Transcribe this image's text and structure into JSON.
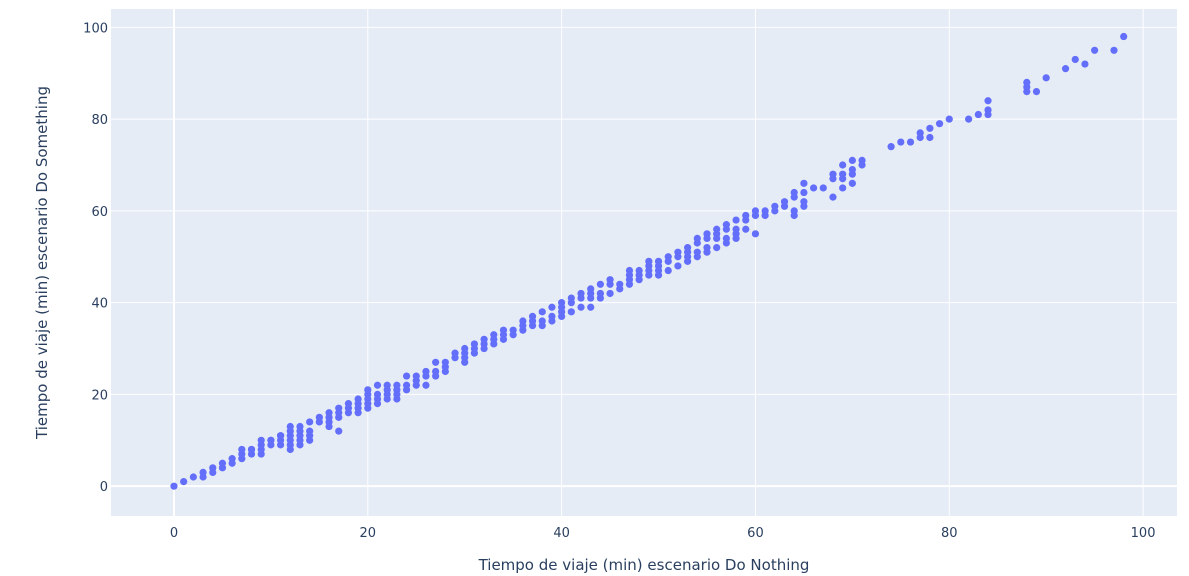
{
  "chart_data": {
    "type": "scatter",
    "title": "",
    "xlabel": "Tiempo de viaje (min) escenario Do Nothing",
    "ylabel": "Tiempo de viaje (min) escenario Do Something",
    "xlim": [
      -6.5,
      103.5
    ],
    "ylim": [
      -6.5,
      104
    ],
    "xticks": [
      0,
      20,
      40,
      60,
      80,
      100
    ],
    "yticks": [
      0,
      20,
      40,
      60,
      80,
      100
    ],
    "xtick_labels": [
      "0",
      "20",
      "40",
      "60",
      "80",
      "100"
    ],
    "ytick_labels": [
      "0",
      "20",
      "40",
      "60",
      "80",
      "100"
    ],
    "grid": true,
    "colors": {
      "marker": "#636efa",
      "plot_bg": "#e5ecf6",
      "gridline": "#ffffff",
      "text": "#2a3f5f"
    },
    "series": [
      {
        "x": [
          0,
          1,
          2,
          3,
          3,
          4,
          4,
          5,
          5,
          6,
          6,
          7,
          7,
          7,
          8,
          8,
          8,
          9,
          9,
          9,
          9,
          10,
          10,
          10,
          11,
          11,
          11,
          11,
          12,
          12,
          12,
          12,
          12,
          12,
          13,
          13,
          13,
          13,
          13,
          14,
          14,
          14,
          14,
          15,
          15,
          16,
          16,
          16,
          16,
          17,
          17,
          17,
          17,
          18,
          18,
          18,
          19,
          19,
          19,
          19,
          20,
          20,
          20,
          20,
          20,
          21,
          21,
          21,
          21,
          22,
          22,
          22,
          22,
          23,
          23,
          23,
          23,
          24,
          24,
          24,
          25,
          25,
          25,
          26,
          26,
          26,
          27,
          27,
          27,
          28,
          28,
          28,
          29,
          29,
          30,
          30,
          30,
          30,
          31,
          31,
          31,
          32,
          32,
          32,
          33,
          33,
          33,
          34,
          34,
          34,
          35,
          35,
          36,
          36,
          36,
          37,
          37,
          37,
          38,
          38,
          38,
          39,
          39,
          39,
          40,
          40,
          40,
          40,
          41,
          41,
          41,
          42,
          42,
          42,
          43,
          43,
          43,
          43,
          44,
          44,
          44,
          45,
          45,
          45,
          46,
          46,
          47,
          47,
          47,
          47,
          48,
          48,
          48,
          49,
          49,
          49,
          49,
          50,
          50,
          50,
          50,
          51,
          51,
          51,
          52,
          52,
          52,
          53,
          53,
          53,
          53,
          54,
          54,
          54,
          54,
          55,
          55,
          55,
          55,
          56,
          56,
          56,
          56,
          57,
          57,
          57,
          57,
          58,
          58,
          58,
          58,
          59,
          59,
          59,
          60,
          60,
          60,
          61,
          61,
          62,
          62,
          63,
          63,
          64,
          64,
          64,
          64,
          65,
          65,
          65,
          65,
          66,
          67,
          68,
          68,
          68,
          69,
          69,
          69,
          69,
          70,
          70,
          70,
          70,
          71,
          71,
          74,
          75,
          76,
          77,
          77,
          78,
          78,
          79,
          80,
          82,
          83,
          84,
          84,
          84,
          88,
          88,
          88,
          89,
          90,
          92,
          93,
          94,
          95,
          97,
          98
        ],
        "y": [
          0,
          1,
          2,
          2,
          3,
          3,
          4,
          4,
          5,
          5,
          6,
          6,
          7,
          8,
          7,
          8,
          8,
          7,
          8,
          9,
          10,
          9,
          10,
          10,
          9,
          10,
          11,
          11,
          8,
          9,
          10,
          11,
          12,
          13,
          9,
          10,
          11,
          12,
          13,
          10,
          11,
          12,
          14,
          14,
          15,
          13,
          14,
          15,
          16,
          12,
          15,
          16,
          17,
          16,
          17,
          18,
          16,
          17,
          18,
          19,
          17,
          18,
          19,
          20,
          21,
          18,
          19,
          20,
          22,
          19,
          20,
          21,
          22,
          19,
          20,
          21,
          22,
          21,
          22,
          24,
          22,
          23,
          24,
          22,
          24,
          25,
          24,
          25,
          27,
          25,
          26,
          27,
          28,
          29,
          28,
          29,
          30,
          27,
          29,
          30,
          31,
          30,
          31,
          32,
          31,
          32,
          33,
          32,
          33,
          34,
          33,
          34,
          35,
          36,
          34,
          35,
          36,
          37,
          35,
          36,
          38,
          36,
          37,
          39,
          37,
          38,
          39,
          40,
          38,
          40,
          41,
          39,
          41,
          42,
          39,
          41,
          42,
          43,
          41,
          42,
          44,
          42,
          44,
          45,
          43,
          44,
          44,
          45,
          46,
          47,
          45,
          46,
          47,
          46,
          47,
          48,
          49,
          46,
          47,
          48,
          49,
          47,
          49,
          50,
          48,
          50,
          51,
          49,
          50,
          51,
          52,
          50,
          51,
          53,
          54,
          51,
          52,
          54,
          55,
          52,
          54,
          55,
          56,
          53,
          54,
          56,
          57,
          54,
          55,
          56,
          58,
          56,
          58,
          59,
          55,
          59,
          60,
          59,
          60,
          60,
          61,
          61,
          62,
          59,
          60,
          63,
          64,
          61,
          62,
          64,
          66,
          65,
          65,
          63,
          67,
          68,
          65,
          67,
          68,
          70,
          66,
          68,
          69,
          71,
          70,
          71,
          74,
          75,
          75,
          76,
          77,
          76,
          78,
          79,
          80,
          80,
          81,
          81,
          82,
          84,
          86,
          87,
          88,
          86,
          89,
          91,
          93,
          92,
          95,
          95,
          98
        ]
      }
    ]
  }
}
